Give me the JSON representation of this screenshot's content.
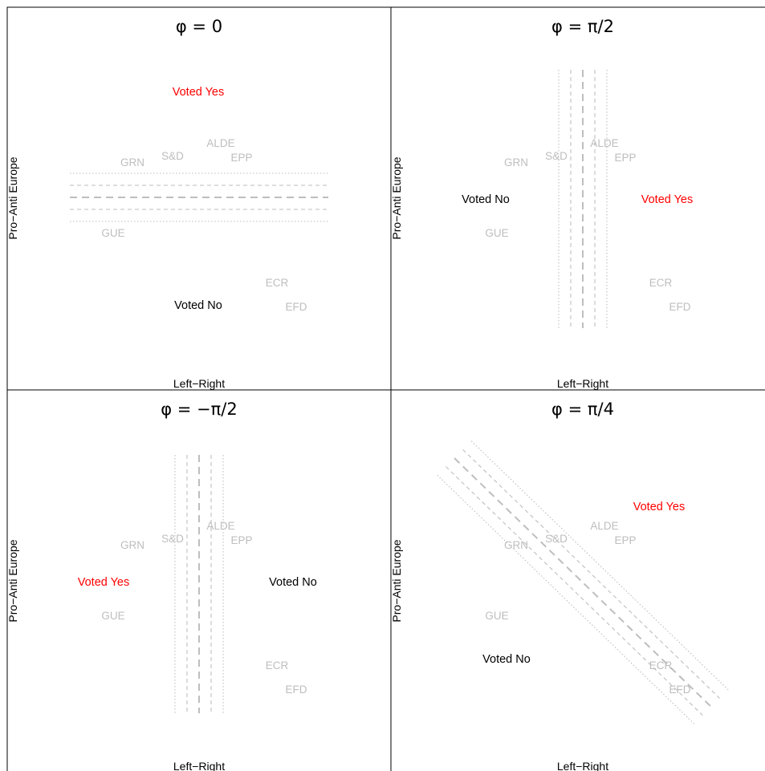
{
  "panels": [
    {
      "title": "φ = 0",
      "xlabel": "Left−Right",
      "ylabel": "Pro−Anti Europe",
      "voted_yes": "Voted Yes",
      "voted_no": "Voted No"
    },
    {
      "title": "φ = π/2",
      "xlabel": "Left−Right",
      "ylabel": "Pro−Anti Europe",
      "voted_yes": "Voted Yes",
      "voted_no": "Voted No"
    },
    {
      "title": "φ = −π/2",
      "xlabel": "Left−Right",
      "ylabel": "Pro−Anti Europe",
      "voted_yes": "Voted Yes",
      "voted_no": "Voted No"
    },
    {
      "title": "φ = π/4",
      "xlabel": "Left−Right",
      "ylabel": "Pro−Anti Europe",
      "voted_yes": "Voted Yes",
      "voted_no": "Voted No"
    }
  ],
  "parties": [
    "GRN",
    "S&D",
    "ALDE",
    "EPP",
    "GUE",
    "ECR",
    "EFD"
  ],
  "colors": {
    "party": "#bebebe",
    "cutline": "#bebebe",
    "voted_yes": "#ff0000",
    "voted_no": "#000000",
    "frame": "#000000"
  }
}
